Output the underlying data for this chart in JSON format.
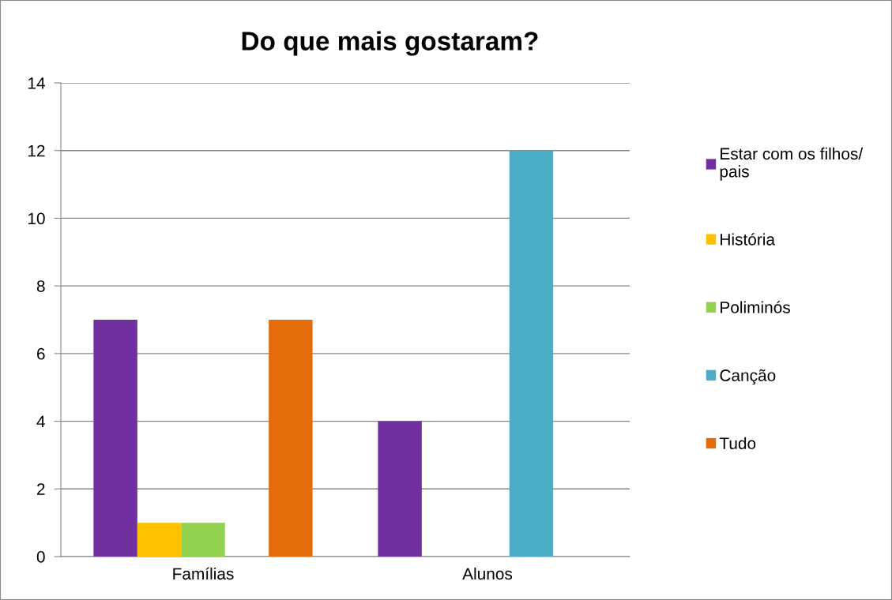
{
  "chart_data": {
    "type": "bar",
    "title": "Do que mais gostaram?",
    "categories": [
      "Famílias",
      "Alunos"
    ],
    "series": [
      {
        "name": "Estar com os filhos/\npais",
        "color": "#7030a0",
        "values": [
          7,
          4
        ]
      },
      {
        "name": "História",
        "color": "#ffc000",
        "values": [
          1,
          0
        ]
      },
      {
        "name": "Poliminós",
        "color": "#92d050",
        "values": [
          1,
          0
        ]
      },
      {
        "name": "Canção",
        "color": "#4bacc6",
        "values": [
          0,
          12
        ]
      },
      {
        "name": "Tudo",
        "color": "#e46c0a",
        "values": [
          7,
          0
        ]
      }
    ],
    "ylim": [
      0,
      14
    ],
    "yticks": [
      0,
      2,
      4,
      6,
      8,
      10,
      12,
      14
    ],
    "grid": "y",
    "legend": "right"
  }
}
